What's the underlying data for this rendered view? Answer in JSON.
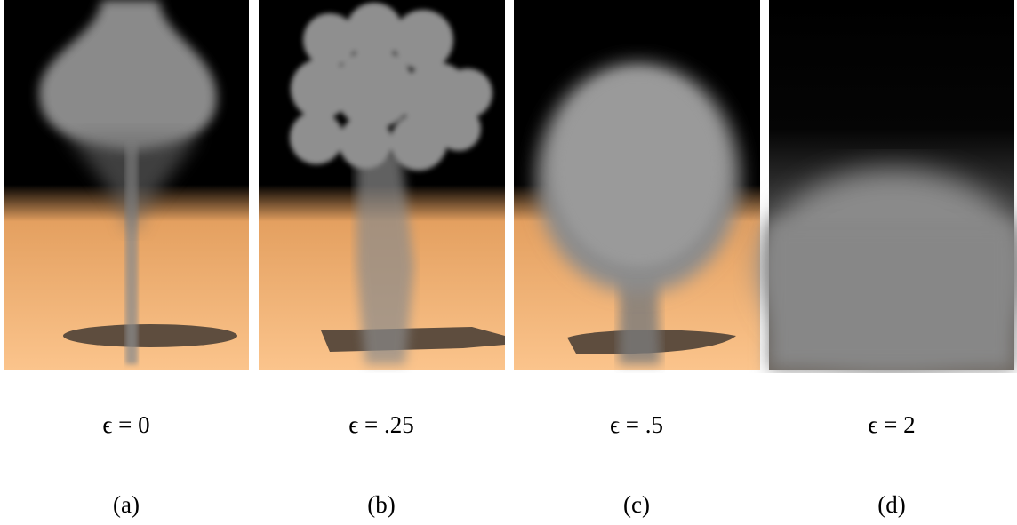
{
  "figure": {
    "panels": [
      {
        "epsilon_label": "ϵ = 0",
        "sub_label": "(a)"
      },
      {
        "epsilon_label": "ϵ = .25",
        "sub_label": "(b)"
      },
      {
        "epsilon_label": "ϵ = .5",
        "sub_label": "(c)"
      },
      {
        "epsilon_label": "ϵ = 2",
        "sub_label": "(d)"
      }
    ]
  }
}
